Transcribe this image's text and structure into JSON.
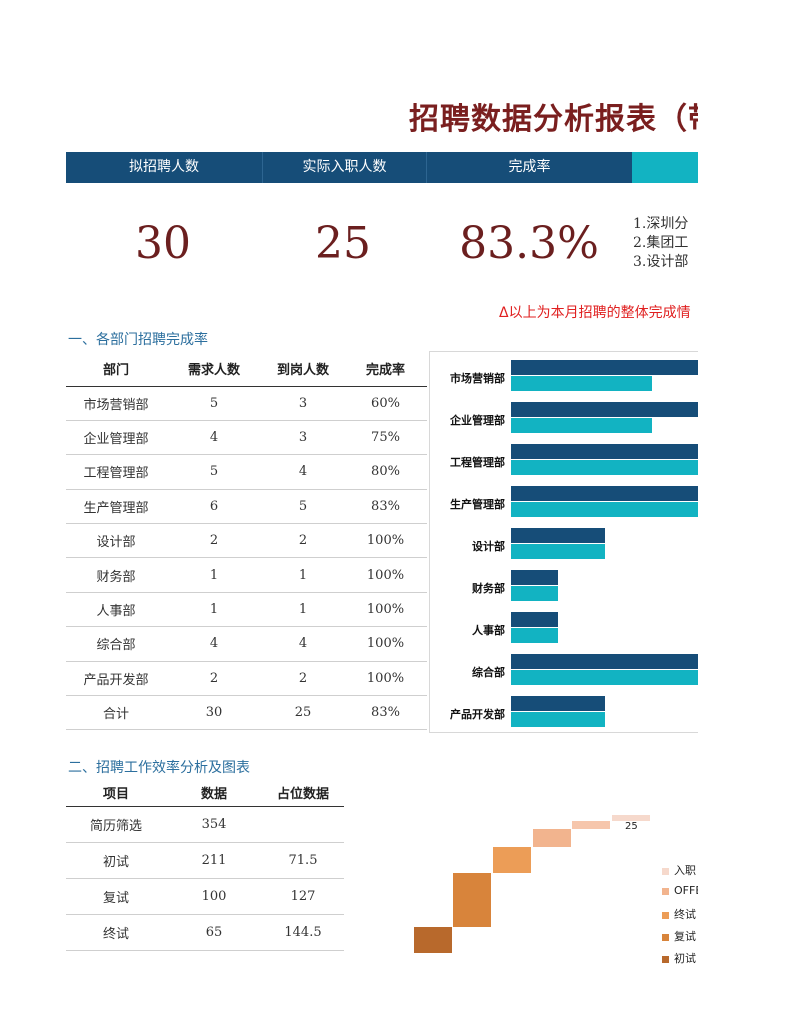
{
  "title": "招聘数据分析报表（带",
  "kpi": {
    "headers": [
      "拟招聘人数",
      "实际入职人数",
      "完成率"
    ],
    "values": [
      "30",
      "25",
      "83.3%"
    ],
    "notes": [
      "1.深圳分",
      "2.集团工",
      "3.设计部"
    ]
  },
  "delta_note": "Δ以上为本月招聘的整体完成情",
  "section1": {
    "title": "一、各部门招聘完成率",
    "columns": [
      "部门",
      "需求人数",
      "到岗人数",
      "完成率"
    ],
    "rows": [
      [
        "市场营销部",
        "5",
        "3",
        "60%"
      ],
      [
        "企业管理部",
        "4",
        "3",
        "75%"
      ],
      [
        "工程管理部",
        "5",
        "4",
        "80%"
      ],
      [
        "生产管理部",
        "6",
        "5",
        "83%"
      ],
      [
        "设计部",
        "2",
        "2",
        "100%"
      ],
      [
        "财务部",
        "1",
        "1",
        "100%"
      ],
      [
        "人事部",
        "1",
        "1",
        "100%"
      ],
      [
        "综合部",
        "4",
        "4",
        "100%"
      ],
      [
        "产品开发部",
        "2",
        "2",
        "100%"
      ],
      [
        "合计",
        "30",
        "25",
        "83%"
      ]
    ]
  },
  "section2": {
    "title": "二、招聘工作效率分析及图表",
    "columns": [
      "项目",
      "数据",
      "占位数据"
    ],
    "rows": [
      [
        "简历筛选",
        "354",
        ""
      ],
      [
        "初试",
        "211",
        "71.5"
      ],
      [
        "复试",
        "100",
        "127"
      ],
      [
        "终试",
        "65",
        "144.5"
      ]
    ]
  },
  "chart_data": [
    {
      "type": "bar",
      "orientation": "horizontal",
      "categories": [
        "市场营销部",
        "企业管理部",
        "工程管理部",
        "生产管理部",
        "设计部",
        "财务部",
        "人事部",
        "综合部",
        "产品开发部"
      ],
      "series": [
        {
          "values": [
            5,
            4,
            5,
            6,
            2,
            1,
            1,
            4,
            2
          ],
          "color": "#164d78"
        },
        {
          "values": [
            3,
            3,
            4,
            5,
            2,
            1,
            1,
            4,
            2
          ],
          "color": "#12b3c2"
        }
      ]
    },
    {
      "type": "bar",
      "subtype": "waterfall",
      "categories": [
        "简历筛选",
        "初试",
        "复试",
        "终试",
        "OFFER",
        "入职"
      ],
      "data_labels": [
        "",
        "",
        "",
        "",
        "",
        "25"
      ],
      "legend": [
        "入职",
        "OFFE",
        "终试",
        "复试",
        "初试"
      ],
      "legend_colors": [
        "#f6d9cc",
        "#f2b48e",
        "#ec9d57",
        "#d8843b",
        "#b8692c"
      ]
    }
  ]
}
